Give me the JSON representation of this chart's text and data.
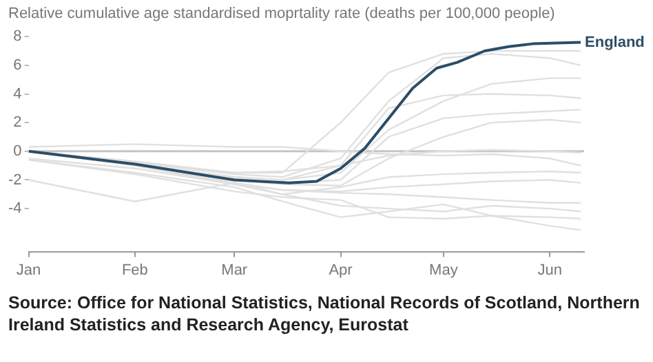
{
  "chart_data": {
    "type": "line",
    "ylabel": "Relative cumulative age standardised moprtality rate (deaths per 100,000 people)",
    "x": [
      "--01-01",
      "--02-01",
      "--03-01",
      "--03-15",
      "--04-01",
      "--04-15",
      "--05-01",
      "--05-15",
      "--06-01",
      "--06-10"
    ],
    "series": [
      {
        "color": "#e0e0e0",
        "values": [
          0,
          -0.8,
          -1.5,
          -1.5,
          2.0,
          5.5,
          6.8,
          7.0,
          7.0,
          7.0
        ]
      },
      {
        "color": "#e0e0e0",
        "values": [
          0,
          -0.8,
          -1.6,
          -1.8,
          -0.5,
          3.5,
          6.5,
          6.8,
          6.5,
          6.0
        ]
      },
      {
        "color": "#e0e0e0",
        "values": [
          0,
          -0.9,
          -1.8,
          -2.0,
          -1.5,
          1.5,
          3.5,
          4.7,
          5.1,
          5.1
        ]
      },
      {
        "color": "#e0e0e0",
        "values": [
          0,
          -0.9,
          -1.8,
          -2.0,
          -1.0,
          3.0,
          3.9,
          4.0,
          3.9,
          3.7
        ]
      },
      {
        "color": "#e0e0e0",
        "values": [
          0,
          -0.9,
          -1.9,
          -2.2,
          -2.0,
          1.0,
          2.3,
          2.6,
          2.8,
          2.9
        ]
      },
      {
        "color": "#e0e0e0",
        "values": [
          0,
          -1.0,
          -2.0,
          -2.3,
          -2.4,
          -0.5,
          1.0,
          2.0,
          2.2,
          2.0
        ]
      },
      {
        "color": "#e0e0e0",
        "values": [
          0.3,
          0.5,
          0.3,
          0.3,
          0,
          -0.2,
          -0.3,
          -0.2,
          -0.5,
          -1.0
        ]
      },
      {
        "color": "#e0e0e0",
        "values": [
          -0.5,
          -1.2,
          -2.3,
          -2.7,
          -2.8,
          -2.5,
          -2.3,
          -2.1,
          -2.0,
          -2.2
        ]
      },
      {
        "color": "#e0e0e0",
        "values": [
          -2.0,
          -3.5,
          -2.2,
          -3.0,
          -3.8,
          -4.0,
          -4.2,
          -3.8,
          -4.0,
          -4.2
        ]
      },
      {
        "color": "#e0e0e0",
        "values": [
          -0.6,
          -1.5,
          -2.5,
          -3.5,
          -4.6,
          -4.2,
          -3.7,
          -4.5,
          -5.2,
          -5.5
        ]
      },
      {
        "color": "#e0e0e0",
        "values": [
          0,
          -1.0,
          -2.2,
          -2.7,
          -2.9,
          -3.0,
          -3.2,
          -3.4,
          -3.6,
          -3.6
        ]
      },
      {
        "color": "#e0e0e0",
        "values": [
          0,
          -0.7,
          -1.5,
          -1.4,
          -1.0,
          -0.3,
          0,
          0.1,
          0,
          -0.1
        ]
      },
      {
        "color": "#e0e0e0",
        "values": [
          -0.6,
          -1.6,
          -2.8,
          -3.2,
          -3.4,
          -4.6,
          -4.7,
          -4.5,
          -4.6,
          -4.7
        ]
      },
      {
        "color": "#e0e0e0",
        "values": [
          0,
          -1.0,
          -2.3,
          -3.0,
          -2.5,
          -1.8,
          -1.6,
          -1.5,
          -1.4,
          -1.5
        ]
      },
      {
        "name": "England",
        "color": "#2b4d68",
        "x": [
          "--01-01",
          "--01-15",
          "--02-01",
          "--03-01",
          "--03-17",
          "--03-25",
          "--04-01",
          "--04-08",
          "--04-22",
          "--04-29",
          "--05-05",
          "--05-13",
          "--05-20",
          "--05-27",
          "--06-10"
        ],
        "values": [
          0,
          -0.4,
          -0.9,
          -2.0,
          -2.2,
          -2.1,
          -1.2,
          0.2,
          4.4,
          5.8,
          6.2,
          7.0,
          7.3,
          7.5,
          7.6
        ]
      }
    ],
    "xlim": [
      "--01-01",
      "--06-11"
    ],
    "xticks": [
      {
        "value": "--01-01",
        "label": "Jan"
      },
      {
        "value": "--02-01",
        "label": "Feb"
      },
      {
        "value": "--03-01",
        "label": "Mar"
      },
      {
        "value": "--04-01",
        "label": "Apr"
      },
      {
        "value": "--05-01",
        "label": "May"
      },
      {
        "value": "--06-01",
        "label": "Jun"
      }
    ],
    "ylim": [
      -7,
      8
    ],
    "yticks": [
      -4,
      -2,
      0,
      2,
      4,
      6,
      8
    ],
    "ref_lines": [
      {
        "axis": "y",
        "value": 0,
        "color": "#c4c4c4"
      }
    ],
    "grid": false,
    "legend": false,
    "marker": "none",
    "line_style": "solid",
    "annotations": [
      "Source: Office for National Statistics, National Records of Scotland, Northern Ireland Statistics and Research Agency, Eurostat"
    ]
  }
}
